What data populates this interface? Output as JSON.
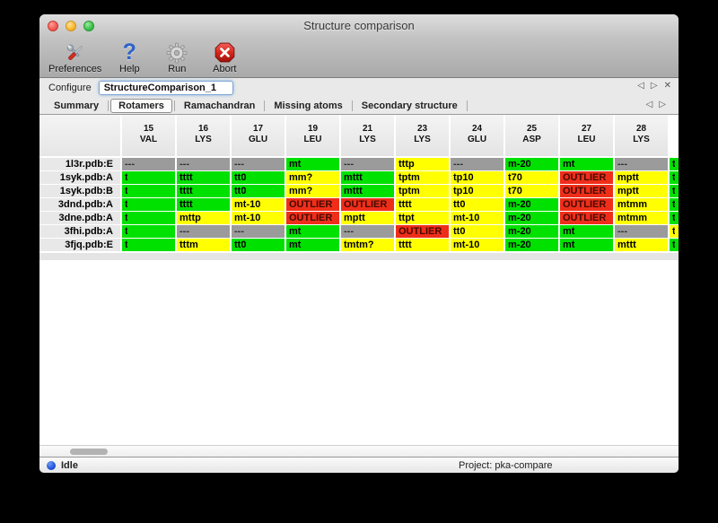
{
  "window": {
    "title": "Structure comparison"
  },
  "toolbar": {
    "items": [
      {
        "label": "Preferences",
        "icon": "tools-icon"
      },
      {
        "label": "Help",
        "icon": "question-mark-icon",
        "glyph": "?"
      },
      {
        "label": "Run",
        "icon": "gear-icon"
      },
      {
        "label": "Abort",
        "icon": "abort-octagon-icon"
      }
    ]
  },
  "configure": {
    "label": "Configure",
    "value": "StructureComparison_1",
    "nav": {
      "back": "◁",
      "forward": "▷",
      "close": "✕"
    }
  },
  "tabs": {
    "items": [
      {
        "label": "Summary",
        "selected": false
      },
      {
        "label": "Rotamers",
        "selected": true
      },
      {
        "label": "Ramachandran",
        "selected": false
      },
      {
        "label": "Missing atoms",
        "selected": false
      },
      {
        "label": "Secondary structure",
        "selected": false
      }
    ],
    "nav": {
      "back": "◁",
      "forward": "▷"
    }
  },
  "table": {
    "partial_mark": "t",
    "columns": [
      {
        "num": "15",
        "res": "VAL"
      },
      {
        "num": "16",
        "res": "LYS"
      },
      {
        "num": "17",
        "res": "GLU"
      },
      {
        "num": "19",
        "res": "LEU"
      },
      {
        "num": "21",
        "res": "LYS"
      },
      {
        "num": "23",
        "res": "LYS"
      },
      {
        "num": "24",
        "res": "GLU"
      },
      {
        "num": "25",
        "res": "ASP"
      },
      {
        "num": "27",
        "res": "LEU"
      },
      {
        "num": "28",
        "res": "LYS"
      }
    ],
    "rows": [
      {
        "label": "1l3r.pdb:E",
        "partial": "green",
        "cells": [
          {
            "c": "gray",
            "t": "---"
          },
          {
            "c": "gray",
            "t": "---"
          },
          {
            "c": "gray",
            "t": "---"
          },
          {
            "c": "green",
            "t": "mt"
          },
          {
            "c": "gray",
            "t": "---"
          },
          {
            "c": "yellow",
            "t": "tttp"
          },
          {
            "c": "gray",
            "t": "---"
          },
          {
            "c": "green",
            "t": "m-20"
          },
          {
            "c": "green",
            "t": "mt"
          },
          {
            "c": "gray",
            "t": "---"
          }
        ]
      },
      {
        "label": "1syk.pdb:A",
        "partial": "green",
        "cells": [
          {
            "c": "green",
            "t": "t",
            "clip": true
          },
          {
            "c": "green",
            "t": "tttt"
          },
          {
            "c": "green",
            "t": "tt0"
          },
          {
            "c": "yellow",
            "t": "mm?"
          },
          {
            "c": "green",
            "t": "mttt"
          },
          {
            "c": "yellow",
            "t": "tptm"
          },
          {
            "c": "yellow",
            "t": "tp10"
          },
          {
            "c": "yellow",
            "t": "t70"
          },
          {
            "c": "red",
            "t": "OUTLIER"
          },
          {
            "c": "yellow",
            "t": "mptt"
          }
        ]
      },
      {
        "label": "1syk.pdb:B",
        "partial": "green",
        "cells": [
          {
            "c": "green",
            "t": "t",
            "clip": true
          },
          {
            "c": "green",
            "t": "tttt"
          },
          {
            "c": "green",
            "t": "tt0"
          },
          {
            "c": "yellow",
            "t": "mm?"
          },
          {
            "c": "green",
            "t": "mttt"
          },
          {
            "c": "yellow",
            "t": "tptm"
          },
          {
            "c": "yellow",
            "t": "tp10"
          },
          {
            "c": "yellow",
            "t": "t70"
          },
          {
            "c": "red",
            "t": "OUTLIER"
          },
          {
            "c": "yellow",
            "t": "mptt"
          }
        ]
      },
      {
        "label": "3dnd.pdb:A",
        "partial": "green",
        "cells": [
          {
            "c": "green",
            "t": "t",
            "clip": true
          },
          {
            "c": "green",
            "t": "tttt"
          },
          {
            "c": "yellow",
            "t": "mt-10"
          },
          {
            "c": "red",
            "t": "OUTLIER"
          },
          {
            "c": "red",
            "t": "OUTLIER"
          },
          {
            "c": "yellow",
            "t": "tttt"
          },
          {
            "c": "yellow",
            "t": "tt0"
          },
          {
            "c": "green",
            "t": "m-20"
          },
          {
            "c": "red",
            "t": "OUTLIER"
          },
          {
            "c": "yellow",
            "t": "mtmm"
          }
        ]
      },
      {
        "label": "3dne.pdb:A",
        "partial": "green",
        "cells": [
          {
            "c": "green",
            "t": "t",
            "clip": true
          },
          {
            "c": "yellow",
            "t": "mttp"
          },
          {
            "c": "yellow",
            "t": "mt-10"
          },
          {
            "c": "red",
            "t": "OUTLIER"
          },
          {
            "c": "yellow",
            "t": "mptt"
          },
          {
            "c": "yellow",
            "t": "ttpt"
          },
          {
            "c": "yellow",
            "t": "mt-10"
          },
          {
            "c": "green",
            "t": "m-20"
          },
          {
            "c": "red",
            "t": "OUTLIER"
          },
          {
            "c": "yellow",
            "t": "mtmm"
          }
        ]
      },
      {
        "label": "3fhi.pdb:A",
        "partial": "yellow",
        "cells": [
          {
            "c": "green",
            "t": "t",
            "clip": true
          },
          {
            "c": "gray",
            "t": "---"
          },
          {
            "c": "gray",
            "t": "---"
          },
          {
            "c": "green",
            "t": "mt"
          },
          {
            "c": "gray",
            "t": "---"
          },
          {
            "c": "red",
            "t": "OUTLIER"
          },
          {
            "c": "yellow",
            "t": "tt0"
          },
          {
            "c": "green",
            "t": "m-20"
          },
          {
            "c": "green",
            "t": "mt"
          },
          {
            "c": "gray",
            "t": "---"
          }
        ]
      },
      {
        "label": "3fjq.pdb:E",
        "partial": "green",
        "cells": [
          {
            "c": "green",
            "t": "t",
            "clip": true
          },
          {
            "c": "yellow",
            "t": "tttm"
          },
          {
            "c": "green",
            "t": "tt0"
          },
          {
            "c": "green",
            "t": "mt"
          },
          {
            "c": "yellow",
            "t": "tmtm?"
          },
          {
            "c": "yellow",
            "t": "tttt"
          },
          {
            "c": "yellow",
            "t": "mt-10"
          },
          {
            "c": "green",
            "t": "m-20"
          },
          {
            "c": "green",
            "t": "mt"
          },
          {
            "c": "yellow",
            "t": "mttt"
          }
        ]
      }
    ]
  },
  "statusbar": {
    "status": "Idle",
    "project": "Project: pka-compare"
  },
  "colors": {
    "green": "#00e100",
    "yellow": "#ffff00",
    "red": "#ef2e1a",
    "gray": "#9b9b9b",
    "status_dot": "#1d4fd7"
  }
}
